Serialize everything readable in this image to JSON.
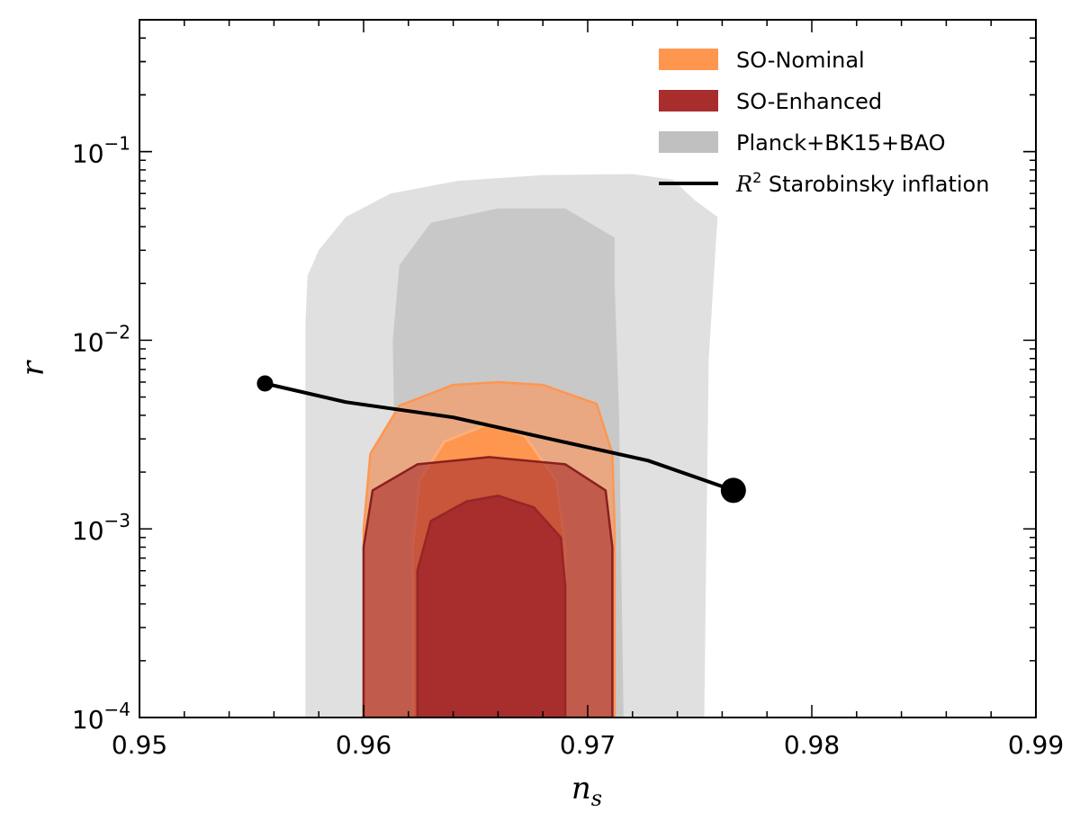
{
  "chart_data": {
    "type": "contour",
    "xlabel": "n",
    "xlabel_sub": "s",
    "ylabel": "r",
    "xlim": [
      0.95,
      0.99
    ],
    "ylim": [
      0.0001,
      0.5
    ],
    "yscale": "log",
    "x_ticks": [
      {
        "value": 0.95,
        "label": "0.95"
      },
      {
        "value": 0.96,
        "label": "0.96"
      },
      {
        "value": 0.97,
        "label": "0.97"
      },
      {
        "value": 0.98,
        "label": "0.98"
      },
      {
        "value": 0.99,
        "label": "0.99"
      }
    ],
    "y_ticks": [
      {
        "value": 0.0001,
        "base": "10",
        "exp": "−4"
      },
      {
        "value": 0.001,
        "base": "10",
        "exp": "−3"
      },
      {
        "value": 0.01,
        "base": "10",
        "exp": "−2"
      },
      {
        "value": 0.1,
        "base": "10",
        "exp": "−1"
      }
    ],
    "legend_position": "top-right",
    "legend": [
      {
        "label": "SO-Nominal",
        "kind": "patch",
        "color": "#ff9650"
      },
      {
        "label": "SO-Enhanced",
        "kind": "patch",
        "color": "#a82d2d"
      },
      {
        "label": "Planck+BK15+BAO",
        "kind": "patch",
        "color": "#c0c0c0"
      },
      {
        "label_prefix": "R",
        "label_sup": "2",
        "label_suffix": " Starobinsky inflation",
        "kind": "line",
        "color": "#000000"
      }
    ],
    "regions": [
      {
        "name": "Planck+BK15+BAO 95%",
        "color": "#e0e0e0",
        "edge": null,
        "opacity": 1,
        "points": [
          [
            0.9574,
            0.0001
          ],
          [
            0.9574,
            0.0035
          ],
          [
            0.9574,
            0.012
          ],
          [
            0.9575,
            0.022
          ],
          [
            0.958,
            0.03
          ],
          [
            0.9592,
            0.045
          ],
          [
            0.9612,
            0.06
          ],
          [
            0.9642,
            0.07
          ],
          [
            0.968,
            0.075
          ],
          [
            0.972,
            0.076
          ],
          [
            0.9738,
            0.071
          ],
          [
            0.9748,
            0.055
          ],
          [
            0.9758,
            0.045
          ],
          [
            0.9757,
            0.03
          ],
          [
            0.9754,
            0.008
          ],
          [
            0.9753,
            0.001
          ],
          [
            0.9752,
            0.0001
          ]
        ]
      },
      {
        "name": "Planck+BK15+BAO 68%",
        "color": "#c8c8c8",
        "edge": null,
        "opacity": 1,
        "points": [
          [
            0.9614,
            0.0001
          ],
          [
            0.9614,
            0.002
          ],
          [
            0.9613,
            0.01
          ],
          [
            0.9616,
            0.025
          ],
          [
            0.963,
            0.042
          ],
          [
            0.966,
            0.05
          ],
          [
            0.969,
            0.05
          ],
          [
            0.9712,
            0.035
          ],
          [
            0.9712,
            0.02
          ],
          [
            0.9714,
            0.004
          ],
          [
            0.9716,
            0.0001
          ]
        ]
      },
      {
        "name": "SO-Nominal 95%",
        "color": "#e9a882",
        "edge": "#ff9650",
        "opacity": 1,
        "points": [
          [
            0.96,
            0.0001
          ],
          [
            0.96,
            0.001
          ],
          [
            0.9603,
            0.0025
          ],
          [
            0.9616,
            0.0045
          ],
          [
            0.964,
            0.0058
          ],
          [
            0.966,
            0.006
          ],
          [
            0.968,
            0.0058
          ],
          [
            0.9704,
            0.0046
          ],
          [
            0.9711,
            0.0025
          ],
          [
            0.9712,
            0.001
          ],
          [
            0.9712,
            0.0001
          ]
        ]
      },
      {
        "name": "SO-Nominal 68%",
        "color": "#ff9650",
        "edge": "#ffb07a",
        "opacity": 1,
        "points": [
          [
            0.9622,
            0.0001
          ],
          [
            0.9622,
            0.0008
          ],
          [
            0.9625,
            0.0018
          ],
          [
            0.9636,
            0.0029
          ],
          [
            0.9656,
            0.0036
          ],
          [
            0.9672,
            0.0031
          ],
          [
            0.9686,
            0.0018
          ],
          [
            0.969,
            0.0008
          ],
          [
            0.969,
            0.0001
          ]
        ]
      },
      {
        "name": "SO-Enhanced 95%",
        "color": "#a82d2d",
        "edge": "#8a1f1f",
        "opacity": 0.62,
        "points": [
          [
            0.96,
            0.0001
          ],
          [
            0.96,
            0.0008
          ],
          [
            0.9604,
            0.0016
          ],
          [
            0.9624,
            0.0022
          ],
          [
            0.9656,
            0.0024
          ],
          [
            0.969,
            0.0022
          ],
          [
            0.9708,
            0.0016
          ],
          [
            0.9711,
            0.0008
          ],
          [
            0.9711,
            0.0001
          ]
        ]
      },
      {
        "name": "SO-Enhanced 68%",
        "color": "#a82d2d",
        "edge": "#962626",
        "opacity": 1,
        "points": [
          [
            0.9624,
            0.0001
          ],
          [
            0.9624,
            0.0006
          ],
          [
            0.963,
            0.0011
          ],
          [
            0.9646,
            0.0014
          ],
          [
            0.966,
            0.0015
          ],
          [
            0.9676,
            0.0013
          ],
          [
            0.9688,
            0.0009
          ],
          [
            0.969,
            0.0005
          ],
          [
            0.969,
            0.0001
          ]
        ]
      }
    ],
    "line": {
      "name": "R^2 Starobinsky inflation",
      "points": [
        [
          0.9556,
          0.0059
        ],
        [
          0.9592,
          0.0047
        ],
        [
          0.964,
          0.0039
        ],
        [
          0.9683,
          0.003
        ],
        [
          0.9727,
          0.0023
        ],
        [
          0.9765,
          0.0016
        ]
      ],
      "start_marker": {
        "x": 0.9556,
        "y": 0.0059,
        "size": "small"
      },
      "end_marker": {
        "x": 0.9765,
        "y": 0.0016,
        "size": "large"
      }
    }
  }
}
